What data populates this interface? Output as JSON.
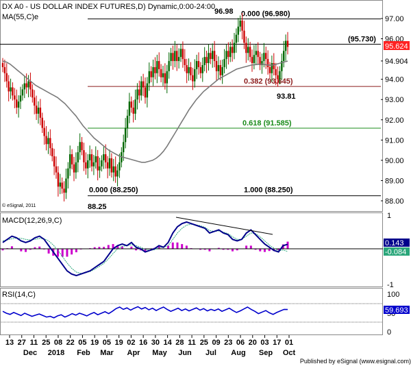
{
  "chart_data": [
    {
      "type": "candlestick",
      "title": "DX A0 - US DOLLAR INDEX FUTURES,D) Dynamic,0:00-24:00",
      "overlay_label": "MA(55,C)e",
      "copyright": "© eSignal, 2011",
      "ylim": [
        87.5,
        97.8
      ],
      "y_ticks": [
        "97.00",
        "96.00",
        "94.904",
        "94.00",
        "93.00",
        "92.00",
        "91.00",
        "90.00",
        "89.00",
        "88.00"
      ],
      "last_price": "95.624",
      "ma_value": "94.904",
      "annotations": {
        "high": "96.98",
        "low": "88.25",
        "swing_low": "93.81",
        "level": "(95.730)"
      },
      "fibonacci": [
        {
          "label": "0.000 (96.980)",
          "value": 96.98,
          "color": "#000000"
        },
        {
          "label": "(95.730)",
          "value": 95.73,
          "color": "#000000"
        },
        {
          "label": "0.382 (93.645)",
          "value": 93.645,
          "color": "#8b1a1a"
        },
        {
          "label": "0.618 (91.585)",
          "value": 91.585,
          "color": "#1a8b1a"
        },
        {
          "label": "0.000 (88.250)",
          "value": 88.25,
          "color": "#000000"
        },
        {
          "label": "1.000 (88.250)",
          "value": 88.25,
          "color": "#000000"
        }
      ],
      "price_close": [
        94.6,
        94.3,
        93.9,
        93.4,
        93.6,
        93.2,
        93.0,
        92.6,
        92.9,
        93.2,
        93.5,
        93.8,
        93.6,
        93.9,
        93.5,
        93.1,
        92.7,
        92.3,
        92.6,
        92.1,
        91.6,
        91.2,
        90.8,
        91.1,
        90.6,
        90.2,
        89.7,
        89.4,
        88.7,
        88.9,
        88.6,
        88.4,
        89.1,
        89.6,
        90.3,
        89.8,
        89.4,
        89.9,
        90.4,
        90.9,
        90.5,
        89.9,
        89.6,
        90.0,
        90.3,
        89.7,
        89.9,
        90.2,
        89.5,
        89.7,
        90.0,
        90.3,
        89.9,
        89.6,
        90.1,
        89.4,
        89.7,
        89.2,
        89.5,
        89.9,
        90.4,
        90.9,
        91.6,
        92.2,
        92.9,
        92.6,
        92.3,
        93.0,
        93.5,
        93.2,
        93.9,
        93.6,
        93.1,
        93.8,
        94.4,
        94.1,
        94.6,
        94.3,
        94.9,
        94.5,
        94.1,
        94.3,
        93.8,
        94.4,
        94.9,
        95.3,
        94.9,
        95.4,
        94.9,
        95.1,
        95.5,
        95.0,
        94.7,
        94.3,
        94.6,
        94.2,
        93.9,
        94.5,
        94.9,
        94.6,
        94.3,
        94.7,
        95.1,
        94.8,
        95.3,
        95.0,
        95.4,
        94.9,
        94.4,
        94.7,
        94.2,
        94.6,
        95.0,
        95.4,
        95.1,
        95.6,
        95.3,
        95.8,
        96.2,
        96.6,
        96.9,
        96.4,
        95.8,
        95.3,
        95.6,
        95.1,
        94.8,
        95.2,
        95.4,
        95.1,
        94.7,
        94.9,
        95.3,
        95.0,
        94.6,
        94.3,
        94.8,
        94.5,
        94.2,
        94.0,
        94.4,
        94.9,
        95.4,
        95.9,
        95.6
      ],
      "ma55": [
        94.9,
        94.85,
        94.75,
        94.6,
        94.45,
        94.3,
        94.15,
        94.0,
        93.85,
        93.7,
        93.6,
        93.5,
        93.4,
        93.3,
        93.2,
        93.1,
        92.95,
        92.8,
        92.6,
        92.4,
        92.2,
        91.95,
        91.7,
        91.5,
        91.3,
        91.1,
        90.95,
        90.8,
        90.65,
        90.5,
        90.4,
        90.3,
        90.2,
        90.15,
        90.1,
        90.05,
        90.0,
        89.95,
        89.9,
        89.9,
        89.95,
        90.0,
        90.1,
        90.25,
        90.45,
        90.7,
        91.0,
        91.3,
        91.6,
        91.9,
        92.2,
        92.5,
        92.75,
        93.0,
        93.2,
        93.4,
        93.55,
        93.7,
        93.85,
        94.0,
        94.1,
        94.2,
        94.3,
        94.4,
        94.5,
        94.55,
        94.6,
        94.65,
        94.7,
        94.72,
        94.74,
        94.75,
        94.72,
        94.7,
        94.7,
        94.75,
        94.8,
        94.85,
        94.9
      ],
      "macd_label": "MACD(12,26,9,C)",
      "macd_values": {
        "macd": "0.143",
        "signal": "-0.084"
      },
      "macd_ticks": [
        "1",
        "-1"
      ],
      "macd_line": [
        0.2,
        0.3,
        0.4,
        0.35,
        0.25,
        0.2,
        0.25,
        0.35,
        0.4,
        0.3,
        0.1,
        -0.1,
        -0.3,
        -0.5,
        -0.7,
        -0.8,
        -0.85,
        -0.8,
        -0.75,
        -0.7,
        -0.6,
        -0.5,
        -0.4,
        -0.2,
        0.0,
        0.1,
        0.15,
        0.1,
        0.2,
        0.05,
        0.0,
        -0.1,
        -0.05,
        0.0,
        0.1,
        0.05,
        0.2,
        0.5,
        0.7,
        0.8,
        0.85,
        0.8,
        0.75,
        0.7,
        0.65,
        0.5,
        0.55,
        0.6,
        0.5,
        0.45,
        0.3,
        0.25,
        0.3,
        0.5,
        0.6,
        0.45,
        0.3,
        0.15,
        0.05,
        -0.05,
        -0.1,
        0.1,
        0.143
      ],
      "macd_signal_line": [
        0.25,
        0.28,
        0.32,
        0.34,
        0.33,
        0.3,
        0.28,
        0.3,
        0.33,
        0.32,
        0.25,
        0.12,
        -0.05,
        -0.25,
        -0.45,
        -0.62,
        -0.74,
        -0.78,
        -0.76,
        -0.72,
        -0.65,
        -0.56,
        -0.46,
        -0.32,
        -0.15,
        0.0,
        0.08,
        0.1,
        0.13,
        0.1,
        0.05,
        -0.02,
        -0.05,
        -0.03,
        0.03,
        0.05,
        0.1,
        0.3,
        0.5,
        0.65,
        0.75,
        0.78,
        0.76,
        0.73,
        0.68,
        0.58,
        0.55,
        0.57,
        0.53,
        0.48,
        0.38,
        0.3,
        0.3,
        0.4,
        0.5,
        0.48,
        0.38,
        0.25,
        0.12,
        0.02,
        -0.06,
        -0.04,
        -0.084
      ],
      "rsi_label": "RSI(14,C)",
      "rsi_value": "59.693",
      "rsi_ticks": [
        "100",
        "50",
        "0"
      ],
      "rsi_line": [
        55,
        50,
        47,
        52,
        48,
        44,
        50,
        46,
        42,
        45,
        48,
        44,
        40,
        42,
        38,
        43,
        46,
        40,
        44,
        49,
        45,
        50,
        47,
        43,
        48,
        52,
        46,
        50,
        54,
        49,
        55,
        62,
        66,
        60,
        64,
        58,
        63,
        67,
        61,
        65,
        59,
        63,
        57,
        62,
        66,
        60,
        55,
        59,
        63,
        57,
        61,
        56,
        60,
        64,
        58,
        62,
        56,
        60,
        57,
        61,
        55,
        59,
        63,
        57,
        52,
        56,
        61,
        66,
        60,
        55,
        49,
        53,
        57,
        51,
        47,
        52,
        56,
        60,
        59.7
      ],
      "x_tick_labels": [
        "13",
        "27",
        "11",
        "25",
        "08",
        "22",
        "05",
        "19",
        "05",
        "19",
        "02",
        "16",
        "30",
        "14",
        "28",
        "11",
        "25",
        "09",
        "23",
        "06",
        "20",
        "03",
        "17",
        "01"
      ],
      "x_month_labels": [
        "Dec",
        "2018",
        "Feb",
        "Mar",
        "Apr",
        "May",
        "Jun",
        "Jul",
        "Aug",
        "Sep",
        "Oct"
      ],
      "footer": "Published by eSignal (www.esignal.com)"
    }
  ]
}
